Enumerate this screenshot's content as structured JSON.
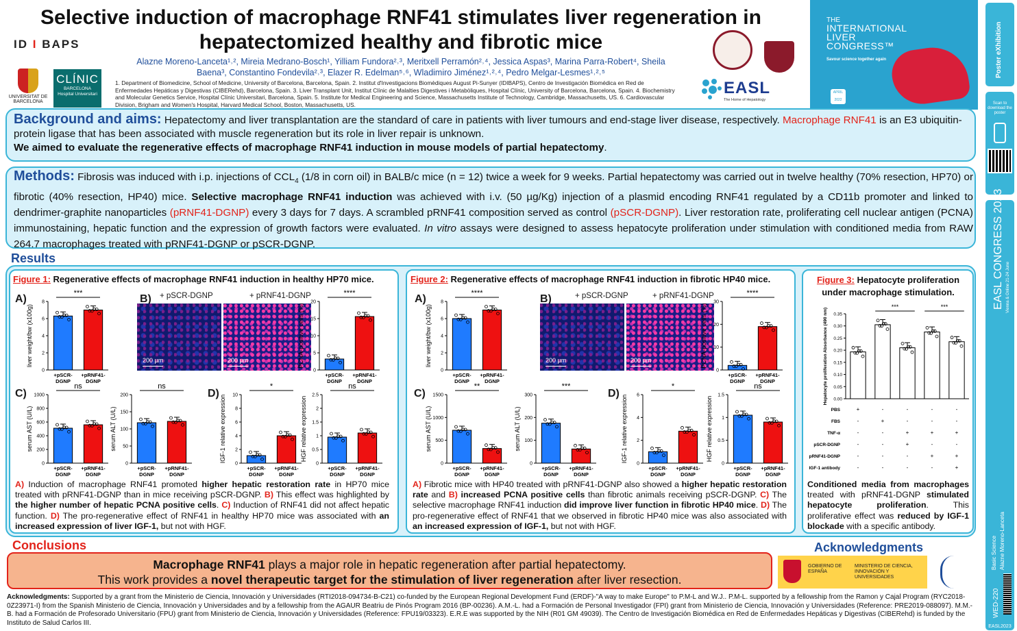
{
  "header": {
    "title_line1": "Selective induction of macrophage RNF41 stimulates liver regeneration in",
    "title_line2": "hepatectomized healthy and fibrotic mice",
    "authors_line1": "Alazne Moreno-Lanceta¹˒², Mireia Medrano-Bosch¹, Yilliam Fundora²˒³, Meritxell Perramón²˒⁴, Jessica Aspas³, Marina Parra-Robert⁴, Sheila",
    "authors_line2": "Baena³, Constantino Fondevila²˒³, Elazer R. Edelman⁵˒⁶, Wladimiro Jiménez¹˒²˒⁴, Pedro Melgar-Lesmes¹˒²˒⁵",
    "affiliations": "1. Department of Biomedicine, School of Medicine, University of Barcelona, Barcelona, Spain. 2. Institut d'Investigacions Biomèdiques August Pi-Sunyer (IDIBAPS), Centro de Investigación Biomédica en Red de Enfermedades Hepáticas y Digestivas (CIBERehd), Barcelona, Spain. 3. Liver Transplant Unit, Institut Clínic de Malalties Digestives i Metabòliques, Hospital Clínic, University of Barcelona, Barcelona, Spain. 4. Biochemistry and Molecular Genetics Service, Hospital Clínic Universitari, Barcelona, Spain. 5. Institute for Medical Engineering and Science, Massachusetts Institute of Technology, Cambridge, Massachusetts, US. 6. Cardiovascular Division, Brigham and Women's Hospital, Harvard Medical School, Boston, Massachusetts, US."
  },
  "logos": {
    "idibaps_a": "ID",
    "idibaps_b": "I",
    "idibaps_c": "BAPS",
    "ub_name": "UNIVERSITAT DE BARCELONA",
    "clinic_name": "CLÍNIC",
    "clinic_sub1": "BARCELONA",
    "clinic_sub2": "Hospital Universitari",
    "easl_name": "EASL",
    "easl_tag": "The Home of Hepatology",
    "ilc_the": "THE",
    "ilc_line1": "INTERNATIONAL",
    "ilc_line2": "LIVER",
    "ilc_line3": "CONGRESS™",
    "ilc_tag": "Savour science together again",
    "ilc_badge": "APRIL 2022"
  },
  "sidebar": {
    "poster_label": "Poster eXhibition",
    "scan_text": "Scan to download the poster",
    "congress_label": "EASL CONGRESS 2023",
    "congress_dates": "Vienna & Online 21-24 June",
    "category": "Basic Science",
    "author": "Alazne Moreno-Lanceta",
    "code": "WED-220",
    "footer": "EASL2023"
  },
  "background": {
    "head": "Background and aims:",
    "text1": " Hepatectomy and liver transplantation are the standard of care in patients with liver tumours and end-stage liver disease, respectively. ",
    "text_red": "Macrophage RNF41",
    "text2": " is an E3 ubiquitin-protein ligase that has been associated with muscle regeneration but its role in liver repair is unknown.",
    "aim": "We aimed to evaluate the regenerative effects of macrophage RNF41 induction in mouse models of partial hepatectomy",
    "aim_end": "."
  },
  "methods": {
    "head": "Methods:",
    "t1": " Fibrosis was induced with i.p. injections of CCL",
    "t1_sub": "4",
    "t2": " (1/8 in corn oil) in BALB/c mice (n = 12) twice a week for 9 weeks. Partial hepatectomy was carried out in twelve healthy (70% resection, HP70) or fibrotic (40% resection, HP40) mice. ",
    "t3_bold": "Selective macrophage RNF41 induction",
    "t4": " was achieved with i.v. (50 µg/Kg) injection of a plasmid encoding RNF41 regulated by a CD11b promoter and linked to dendrimer-graphite nanoparticles ",
    "t5_red": "(pRNF41-DGNP)",
    "t6": " every 3 days for 7 days. A scrambled pRNF41 composition served as control ",
    "t7_red": "(pSCR-DGNP)",
    "t8": ". Liver restoration rate, proliferating cell nuclear antigen (PCNA) immunostaining, hepatic function and the expression of growth factors were evaluated. ",
    "t9_it": "In vitro",
    "t10": " assays were designed to assess hepatocyte proliferation under stimulation with conditioned media from RAW 264.7 macrophages treated with pRNF41-DGNP or pSCR-DGNP."
  },
  "results_head": "Results",
  "fig1": {
    "label": "Figure 1:",
    "title": " Regenerative effects of macrophage RNF41 induction in healthy HP70 mice.",
    "img_l": "+ pSCR-DGNP",
    "img_r": "+ pRNF41-DGNP",
    "scale": "200 µm",
    "caption": [
      {
        "t": "A)",
        "c": "red"
      },
      {
        "t": " Induction of macrophage RNF41 promoted "
      },
      {
        "t": "higher hepatic restoration rate",
        "b": 1
      },
      {
        "t": " in HP70 mice treated with pRNF41-DGNP than in mice receiving pSCR-DGNP. "
      },
      {
        "t": "B)",
        "c": "red"
      },
      {
        "t": " This effect was highlighted by "
      },
      {
        "t": "the higher number of hepatic PCNA positive cells",
        "b": 1
      },
      {
        "t": ". "
      },
      {
        "t": "C)",
        "c": "red"
      },
      {
        "t": " Induction of RNF41 did not affect hepatic function. "
      },
      {
        "t": "D)",
        "c": "red"
      },
      {
        "t": " The pro-regenerative effect of RNF41 in healthy HP70 mice was associated with "
      },
      {
        "t": "an increased expression of liver IGF-1,",
        "b": 1
      },
      {
        "t": " but not with HGF."
      }
    ]
  },
  "fig2": {
    "label": "Figure 2:",
    "title": " Regenerative effects of macrophage RNF41 induction in fibrotic HP40 mice.",
    "img_l": "+ pSCR-DGNP",
    "img_r": "+ pRNF41-DGNP",
    "scale": "200 µm",
    "caption": [
      {
        "t": "A)",
        "c": "red"
      },
      {
        "t": " Fibrotic mice with HP40 treated with pRNF41-DGNP also showed a "
      },
      {
        "t": "higher hepatic restoration rate",
        "b": 1
      },
      {
        "t": " and "
      },
      {
        "t": "B)",
        "c": "red"
      },
      {
        "t": " "
      },
      {
        "t": "increased PCNA positive cells",
        "b": 1
      },
      {
        "t": " than fibrotic animals receiving pSCR-DGNP. "
      },
      {
        "t": "C)",
        "c": "red"
      },
      {
        "t": " The selective macrophage RNF41 induction "
      },
      {
        "t": "did improve liver function in fibrotic HP40 mice",
        "b": 1
      },
      {
        "t": ". "
      },
      {
        "t": "D)",
        "c": "red"
      },
      {
        "t": " The pro-regenerative effect of RNF41 that we observed in fibrotic HP40 mice was also associated with "
      },
      {
        "t": "an increased expression of IGF-1,",
        "b": 1
      },
      {
        "t": " but not with HGF."
      }
    ]
  },
  "fig3": {
    "label": "Figure 3:",
    "title1": " Hepatocyte proliferation",
    "title2": "under macrophage stimulation.",
    "treat_rows": [
      {
        "name": "PBS",
        "v": [
          "+",
          "-",
          "-",
          "-",
          "-"
        ]
      },
      {
        "name": "FBS",
        "v": [
          "-",
          "+",
          "-",
          "-",
          "-"
        ]
      },
      {
        "name": "TNF-α",
        "v": [
          "-",
          "-",
          "+",
          "+",
          "+"
        ]
      },
      {
        "name": "pSCR-DGNP",
        "v": [
          "-",
          "-",
          "+",
          "-",
          "-"
        ]
      },
      {
        "name": "pRNF41-DGNP",
        "v": [
          "-",
          "-",
          "-",
          "+",
          "+"
        ]
      },
      {
        "name": "IGF-1 antibody",
        "v": [
          "-",
          "-",
          "-",
          "-",
          "+"
        ]
      }
    ],
    "caption": [
      {
        "t": "Conditioned media from macrophages",
        "b": 1
      },
      {
        "t": " treated with pRNF41-DGNP "
      },
      {
        "t": "stimulated hepatocyte proliferation",
        "b": 1
      },
      {
        "t": ". This proliferative effect was "
      },
      {
        "t": "reduced by IGF-1 blockade",
        "b": 1
      },
      {
        "t": " with a specific antibody."
      }
    ]
  },
  "conclusions": {
    "head": "Conclusions",
    "l1_b": "Macrophage RNF41",
    "l1": " plays a major role in hepatic regeneration after partial hepatectomy.",
    "l2": "This work provides a ",
    "l2_b": "novel therapeutic target for the stimulation of liver regeneration",
    "l2_end": " after liver resection."
  },
  "ack_head": "Acknowledgments",
  "ack_logo1": "GOBIERNO DE ESPAÑA",
  "ack_logo2": "MINISTERIO DE CIENCIA, INNOVACIÓN Y UNIVERSIDADES",
  "ack_label": "Acknowledgments:",
  "ack_text": " Supported by a grant from the Ministerio de Ciencia, Innovación y Universidades (RTI2018-094734-B-C21) co-funded by the European Regional Development Fund (ERDF)-\"A way to make Europe\" to P.M-L and W.J.. P.M-L. supported by a fellowship from the Ramon y Cajal Program (RYC2018-0Z23971-I) from the Spanish Ministerio de Ciencia, Innovación y Universidades and by a fellowship from the AGAUR Beatriu de Pinós Program 2016 (BP-00236). A.M.-L. had a Formación de Personal Investigador (FPI) grant from Ministerio de Ciencia, Innovación y Universidades (Reference: PRE2019-088097). M.M.-B. had a Formación de Profesorado Universitario (FPU) grant from Ministerio de Ciencia, Innovación y Universidades (Reference: FPU19/03323). E.R.E was supported by the NIH (R01 GM 49039). The Centro de Investigación Biomédica en Red de Enfermedades Hepáticas y Digestivas (CIBERehd) is funded by the Instituto de Salud Carlos III.",
  "colors": {
    "blue": "#1f7bff",
    "red": "#ee1111",
    "frame": "#3ab5d8",
    "head": "#1f4e9a"
  },
  "chart_data": [
    {
      "id": "f1A",
      "type": "bar",
      "ylabel": "liver weight/bw (x100g)",
      "ylim": [
        0,
        8
      ],
      "yticks": [
        0,
        2,
        4,
        6,
        8
      ],
      "categories": [
        "+pSCR-DGNP",
        "+pRNF41-DGNP"
      ],
      "values": [
        6.3,
        7.0
      ],
      "sig": "***"
    },
    {
      "id": "f1B",
      "type": "bar",
      "ylabel": "PCNA-positive cells (%)",
      "ylim": [
        0,
        20
      ],
      "yticks": [
        0,
        5,
        10,
        15,
        20
      ],
      "categories": [
        "+pSCR-DGNP",
        "+pRNF41-DGNP"
      ],
      "values": [
        3.2,
        15.6
      ],
      "sig": "****"
    },
    {
      "id": "f1C1",
      "type": "bar",
      "ylabel": "serum AST (U/L)",
      "ylim": [
        0,
        1000
      ],
      "yticks": [
        0,
        200,
        400,
        600,
        800,
        1000
      ],
      "categories": [
        "+pSCR-DGNP",
        "+pRNF41-DGNP"
      ],
      "values": [
        510,
        560
      ],
      "sig": "ns"
    },
    {
      "id": "f1C2",
      "type": "bar",
      "ylabel": "serum ALT (U/L)",
      "ylim": [
        0,
        200
      ],
      "yticks": [
        0,
        50,
        100,
        150,
        200
      ],
      "categories": [
        "+pSCR-DGNP",
        "+pRNF41-DGNP"
      ],
      "values": [
        118,
        122
      ],
      "sig": "ns"
    },
    {
      "id": "f1D1",
      "type": "bar",
      "ylabel": "IGF-1 relative expression",
      "ylim": [
        0,
        10
      ],
      "yticks": [
        0,
        2,
        4,
        6,
        8,
        10
      ],
      "categories": [
        "+pSCR-DGNP",
        "+pRNF41-DGNP"
      ],
      "values": [
        1.1,
        4.0
      ],
      "sig": "*"
    },
    {
      "id": "f1D2",
      "type": "bar",
      "ylabel": "HGF relative expression",
      "ylim": [
        0,
        2.5
      ],
      "yticks": [
        0,
        0.5,
        1.0,
        1.5,
        2.0,
        2.5
      ],
      "categories": [
        "+pSCR-DGNP",
        "+pRNF41-DGNP"
      ],
      "values": [
        0.95,
        1.1
      ],
      "sig": "ns"
    },
    {
      "id": "f2A",
      "type": "bar",
      "ylabel": "liver weight/bw (x100g)",
      "ylim": [
        0,
        8
      ],
      "yticks": [
        0,
        2,
        4,
        6,
        8
      ],
      "categories": [
        "+pSCR-DGNP",
        "+pRNF41-DGNP"
      ],
      "values": [
        6.0,
        7.0
      ],
      "sig": "****"
    },
    {
      "id": "f2B",
      "type": "bar",
      "ylabel": "PCNA-positive cells (%)",
      "ylim": [
        0,
        30
      ],
      "yticks": [
        0,
        10,
        20,
        30
      ],
      "categories": [
        "+pSCR-DGNP",
        "+pRNF41-DGNP"
      ],
      "values": [
        2.0,
        19.0
      ],
      "sig": "****"
    },
    {
      "id": "f2C1",
      "type": "bar",
      "ylabel": "serum AST (U/L)",
      "ylim": [
        0,
        1500
      ],
      "yticks": [
        0,
        500,
        1000,
        1500
      ],
      "categories": [
        "+pSCR-DGNP",
        "+pRNF41-DGNP"
      ],
      "values": [
        720,
        320
      ],
      "sig": "**"
    },
    {
      "id": "f2C2",
      "type": "bar",
      "ylabel": "serum ALT (U/L)",
      "ylim": [
        0,
        300
      ],
      "yticks": [
        0,
        100,
        200,
        300
      ],
      "categories": [
        "+pSCR-DGNP",
        "+pRNF41-DGNP"
      ],
      "values": [
        175,
        62
      ],
      "sig": "***"
    },
    {
      "id": "f2D1",
      "type": "bar",
      "ylabel": "IGF-1 relative expression",
      "ylim": [
        0,
        6
      ],
      "yticks": [
        0,
        2,
        4,
        6
      ],
      "categories": [
        "+pSCR-DGNP",
        "+pRNF41-DGNP"
      ],
      "values": [
        1.0,
        2.8
      ],
      "sig": "*"
    },
    {
      "id": "f2D2",
      "type": "bar",
      "ylabel": "HGF relative expression",
      "ylim": [
        0,
        1.5
      ],
      "yticks": [
        0,
        0.5,
        1.0,
        1.5
      ],
      "categories": [
        "+pSCR-DGNP",
        "+pRNF41-DGNP"
      ],
      "values": [
        1.05,
        0.9
      ],
      "sig": "ns"
    },
    {
      "id": "f3",
      "type": "bar",
      "ylabel": "Hepatocyte proliferation Absorbance (490 nm)",
      "ylim": [
        0,
        0.35
      ],
      "yticks": [
        0,
        0.05,
        0.1,
        0.15,
        0.2,
        0.25,
        0.3,
        0.35
      ],
      "categories": [
        "1",
        "2",
        "3",
        "4",
        "5"
      ],
      "values": [
        0.193,
        0.305,
        0.21,
        0.275,
        0.235
      ],
      "sig_pairs": [
        [
          1,
          2,
          "***"
        ],
        [
          3,
          4,
          "***"
        ]
      ]
    }
  ]
}
